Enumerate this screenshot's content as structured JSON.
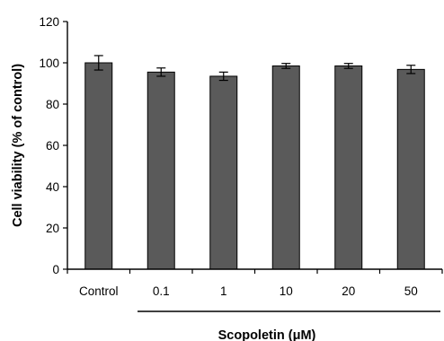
{
  "chart_data": {
    "type": "bar",
    "categories": [
      "Control",
      "0.1",
      "1",
      "10",
      "20",
      "50"
    ],
    "values": [
      100,
      95.5,
      93.5,
      98.5,
      98.5,
      96.8
    ],
    "errors": [
      3.5,
      2.0,
      2.0,
      1.2,
      1.2,
      2.0
    ],
    "ylabel": "Cell viability (% of control)",
    "xlabel": "Scopoletin (μM)",
    "ylim": [
      0,
      120
    ],
    "yticks": [
      "0",
      "20",
      "40",
      "60",
      "80",
      "100",
      "120"
    ],
    "grid": false,
    "colors": {
      "bar": "#5a5a5a",
      "axis": "#000000"
    }
  }
}
